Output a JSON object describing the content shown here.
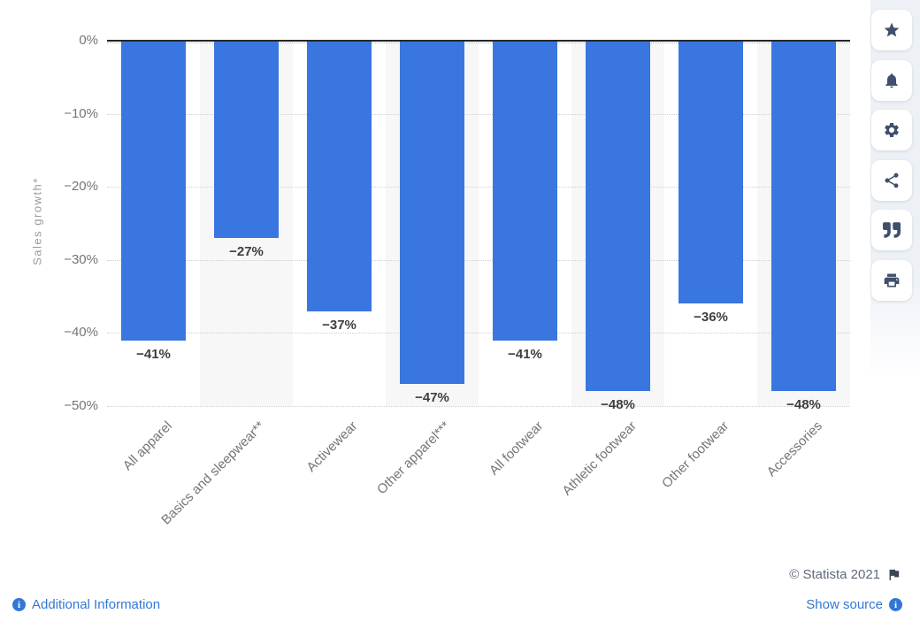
{
  "chart_data": {
    "type": "bar",
    "title": "",
    "xlabel": "",
    "ylabel": "Sales growth*",
    "categories": [
      "All apparel",
      "Basics and sleepwear**",
      "Activewear",
      "Other apparel***",
      "All footwear",
      "Athletic footwear",
      "Other footwear",
      "Accessories"
    ],
    "values": [
      -41,
      -27,
      -37,
      -47,
      -41,
      -48,
      -36,
      -48
    ],
    "value_labels": [
      "−41%",
      "−27%",
      "−37%",
      "−47%",
      "−41%",
      "−48%",
      "−36%",
      "−48%"
    ],
    "yticks": [
      {
        "value": 0,
        "label": "0%"
      },
      {
        "value": -10,
        "label": "−10%"
      },
      {
        "value": -20,
        "label": "−20%"
      },
      {
        "value": -30,
        "label": "−30%"
      },
      {
        "value": -40,
        "label": "−40%"
      },
      {
        "value": -50,
        "label": "−50%"
      }
    ],
    "ylim": [
      -50,
      0
    ],
    "grid": "horizontal-dotted",
    "legend": "none",
    "bar_color": "#3A76DF",
    "plot_band_color": "#F7F7F7",
    "banded_columns": [
      1,
      3,
      5,
      7
    ]
  },
  "sidebar": {
    "icons": [
      {
        "name": "favorite-button",
        "icon": "star-icon"
      },
      {
        "name": "notifications-button",
        "icon": "bell-icon"
      },
      {
        "name": "settings-button",
        "icon": "gear-icon"
      },
      {
        "name": "share-button",
        "icon": "share-icon"
      },
      {
        "name": "cite-button",
        "icon": "quote-icon"
      },
      {
        "name": "print-button",
        "icon": "printer-icon"
      }
    ],
    "icon_color": "#3F4F6D"
  },
  "footer": {
    "copyright": "© Statista 2021",
    "additional_information": "Additional Information",
    "show_source": "Show source",
    "link_color": "#3277D6"
  }
}
